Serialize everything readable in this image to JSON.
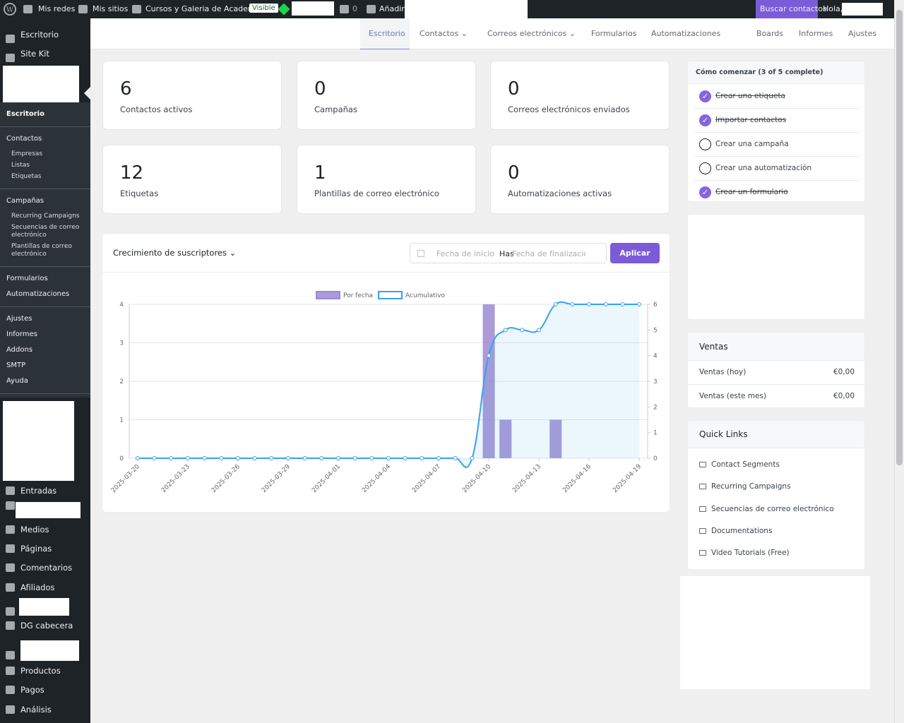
{
  "admin_bar": {
    "items": [
      "Mis redes",
      "Mis sitios",
      "Cursos y Galeria de Academias",
      "Visible",
      "0",
      "Añadir"
    ],
    "search": "Buscar contactos",
    "greeting": "Hola,"
  },
  "sidebar": {
    "top": [
      "Escritorio",
      "Site Kit"
    ],
    "plugin_menu": [
      [
        {
          "label": "Escritorio"
        }
      ],
      [
        {
          "label": "Contactos",
          "children": [
            "Empresas",
            "Listas",
            "Etiquetas"
          ]
        }
      ],
      [
        {
          "label": "Campañas",
          "children": [
            "Recurring Campaigns",
            "Secuencias de correo electrónico",
            "Plantillas de correo electrónico"
          ]
        }
      ],
      [
        {
          "label": "Formularios"
        },
        {
          "label": "Automatizaciones"
        }
      ],
      [
        {
          "label": "Ajustes"
        },
        {
          "label": "Informes"
        },
        {
          "label": "Addons"
        },
        {
          "label": "SMTP"
        },
        {
          "label": "Ayuda"
        }
      ]
    ],
    "bottom": [
      "Entradas",
      "Medios",
      "Páginas",
      "Comentarios",
      "Afiliados",
      "DG cabecera",
      "Productos",
      "Pagos",
      "Análisis"
    ]
  },
  "top_nav": {
    "items": [
      "Escritorio",
      "Contactos",
      "Correos electrónicos",
      "Formularios",
      "Automatizaciones",
      "Boards",
      "Informes",
      "Ajustes"
    ]
  },
  "stats": [
    {
      "value": 6,
      "label": "Contactos activos"
    },
    {
      "value": 0,
      "label": "Campañas"
    },
    {
      "value": 0,
      "label": "Correos electrónicos enviados"
    },
    {
      "value": 12,
      "label": "Etiquetas"
    },
    {
      "value": 1,
      "label": "Plantillas de correo electrónico"
    },
    {
      "value": 0,
      "label": "Automatizaciones activas"
    }
  ],
  "growth": {
    "title": "Crecimiento de suscriptores",
    "start_placeholder": "Fecha de inicio",
    "separator": "Has",
    "end_placeholder": "Fecha de finalización",
    "apply": "Aplicar"
  },
  "chart_data": {
    "type": "bar",
    "categories": [
      "2025-03-20",
      null,
      null,
      "2025-03-23",
      null,
      null,
      "2025-03-26",
      null,
      null,
      "2025-03-29",
      null,
      null,
      "2025-04-01",
      null,
      null,
      "2025-04-04",
      null,
      null,
      "2025-04-07",
      null,
      null,
      "2025-04-10",
      null,
      null,
      "2025-04-13",
      null,
      null,
      "2025-04-16",
      null,
      null,
      "2025-04-19"
    ],
    "series": [
      {
        "name": "Por fecha",
        "type": "bar",
        "color": "#9d8ad2",
        "values": [
          0,
          0,
          0,
          0,
          0,
          0,
          0,
          0,
          0,
          0,
          0,
          0,
          0,
          0,
          0,
          0,
          0,
          0,
          0,
          0,
          0,
          4,
          1,
          0,
          0,
          1,
          0,
          0,
          0,
          0,
          0
        ]
      },
      {
        "name": "Acumulativo",
        "type": "line",
        "color": "#36a2eb",
        "axis": "y2",
        "values": [
          0,
          0,
          0,
          0,
          0,
          0,
          0,
          0,
          0,
          0,
          0,
          0,
          0,
          0,
          0,
          0,
          0,
          0,
          0,
          0,
          0,
          4,
          5,
          5,
          5,
          6,
          6,
          6,
          6,
          6,
          6
        ]
      }
    ],
    "ylim": [
      0,
      4
    ],
    "yticks": [
      0,
      1,
      2,
      3,
      4
    ],
    "y2lim": [
      0,
      6
    ],
    "y2ticks": [
      0,
      1,
      2,
      3,
      4,
      5,
      6
    ],
    "grid": true
  },
  "getting_started": {
    "title": "Cómo comenzar (3 of 5 complete)",
    "tasks": [
      {
        "label": "Crear una etiqueta",
        "done": true
      },
      {
        "label": "Importar contactos",
        "done": true
      },
      {
        "label": "Crear una campaña",
        "done": false
      },
      {
        "label": "Crear una automatización",
        "done": false
      },
      {
        "label": "Crear un formulario",
        "done": true
      }
    ]
  },
  "sales": {
    "title": "Ventas",
    "rows": [
      {
        "label": "Ventas (hoy)",
        "value": "€0,00"
      },
      {
        "label": "Ventas (este mes)",
        "value": "€0,00"
      }
    ]
  },
  "quick_links": {
    "title": "Quick Links",
    "items": [
      "Contact Segments",
      "Recurring Campaigns",
      "Secuencias de correo electrónico",
      "Documentations",
      "Video Tutorials (Free)"
    ]
  }
}
